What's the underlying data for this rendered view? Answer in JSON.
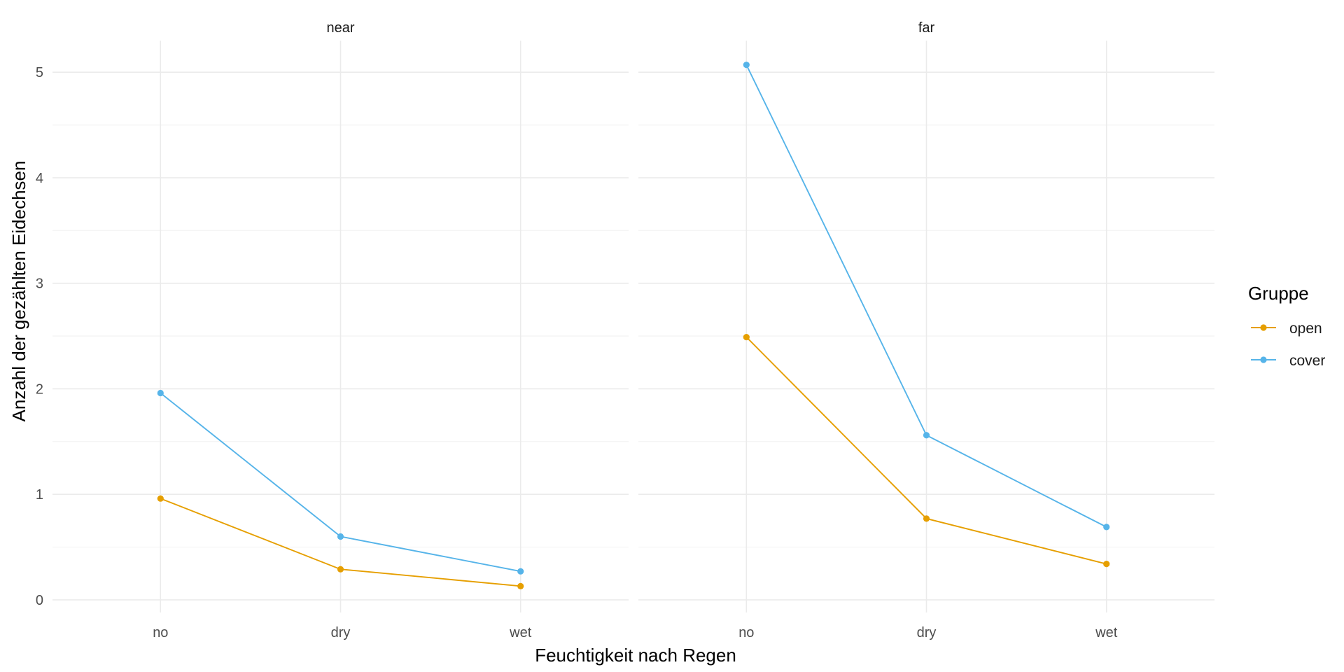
{
  "chart_data": {
    "type": "line",
    "xlabel": "Feuchtigkeit nach Regen",
    "ylabel": "Anzahl der gezählten Eidechsen",
    "ylim": [
      -0.12,
      5.3
    ],
    "yticks": [
      0,
      1,
      2,
      3,
      4,
      5
    ],
    "yticks_minor": [
      0.5,
      1.5,
      2.5,
      3.5,
      4.5
    ],
    "categories": [
      "no",
      "dry",
      "wet"
    ],
    "grid": true,
    "legend": {
      "title": "Gruppe",
      "position": "right",
      "entries": [
        {
          "name": "open",
          "color": "#E69F00"
        },
        {
          "name": "cover",
          "color": "#56B4E9"
        }
      ]
    },
    "panels": [
      {
        "label": "near",
        "series": [
          {
            "name": "open",
            "color": "#E69F00",
            "values": [
              0.96,
              0.29,
              0.13
            ]
          },
          {
            "name": "cover",
            "color": "#56B4E9",
            "values": [
              1.96,
              0.6,
              0.27
            ]
          }
        ]
      },
      {
        "label": "far",
        "series": [
          {
            "name": "open",
            "color": "#E69F00",
            "values": [
              2.49,
              0.77,
              0.34
            ]
          },
          {
            "name": "cover",
            "color": "#56B4E9",
            "values": [
              5.07,
              1.56,
              0.69
            ]
          }
        ]
      }
    ]
  }
}
